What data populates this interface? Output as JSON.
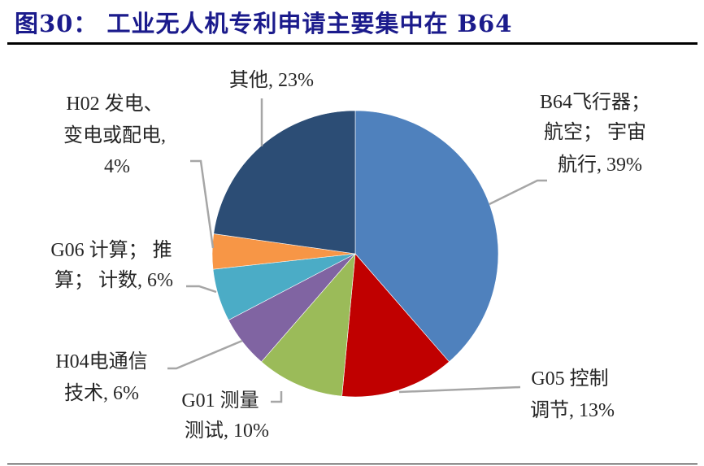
{
  "title": "图30： 工业无人机专利申请主要集中在 B64",
  "chart_data": {
    "type": "pie",
    "title": "工业无人机专利申请主要集中在 B64",
    "start_angle_deg": 0,
    "direction": "clockwise",
    "slices": [
      {
        "label": "B64飞行器；航空；宇宙航行",
        "value": 39,
        "color": "#4f81bd"
      },
      {
        "label": "G05 控制调节",
        "value": 13,
        "color": "#c00000"
      },
      {
        "label": "G01 测量测试",
        "value": 10,
        "color": "#9bbb59"
      },
      {
        "label": "H04电通信技术",
        "value": 6,
        "color": "#8064a2"
      },
      {
        "label": "G06 计算；推算；计数",
        "value": 6,
        "color": "#4bacc6"
      },
      {
        "label": "H02 发电、变电或配电",
        "value": 4,
        "color": "#f79646"
      },
      {
        "label": "其他",
        "value": 23,
        "color": "#2c4d75"
      }
    ]
  },
  "labels": {
    "b64": [
      "B64飞行器；",
      "航空；  宇宙",
      "航行, 39%"
    ],
    "g05": [
      "G05 控制",
      "调节, 13%"
    ],
    "g01": [
      "G01 测量",
      "测试, 10%"
    ],
    "h04": [
      "H04电通信",
      "技术, 6%"
    ],
    "g06": [
      "G06 计算；  推",
      "算；  计数, 6%"
    ],
    "h02": [
      "H02 发电、",
      "变电或配电,",
      "4%"
    ],
    "other": [
      "其他, 23%"
    ]
  }
}
